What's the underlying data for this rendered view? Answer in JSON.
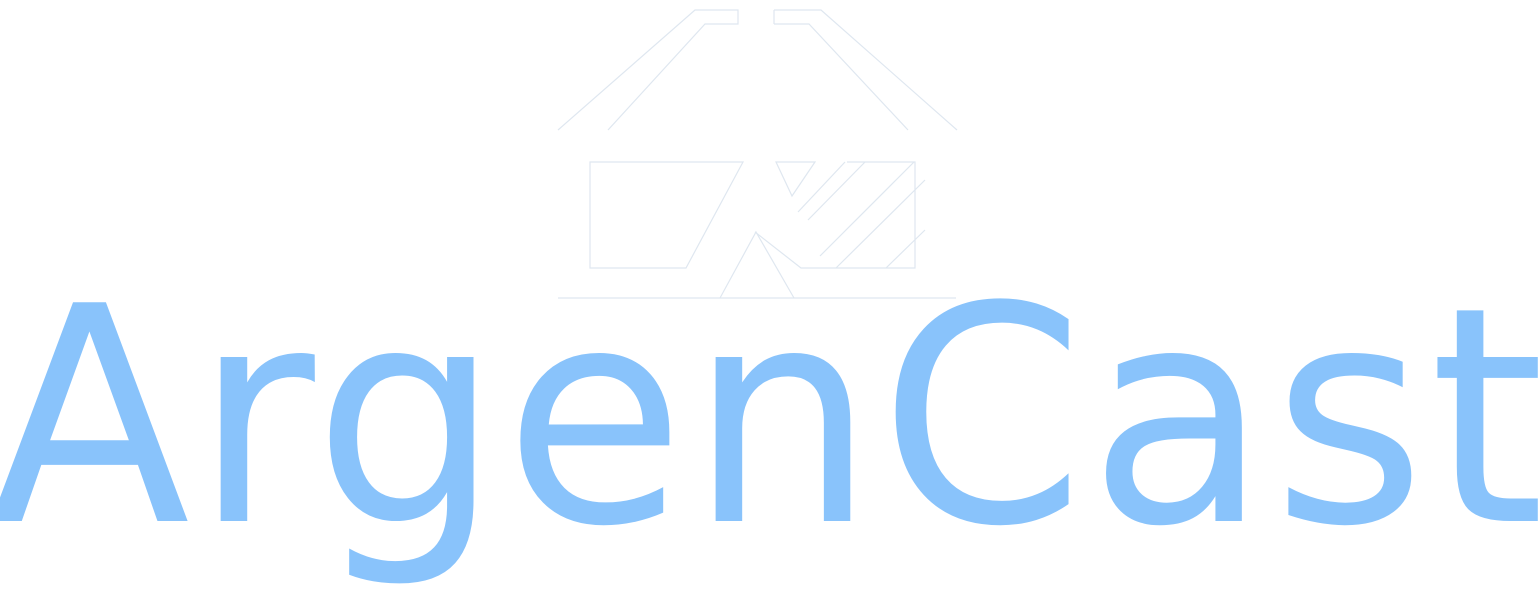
{
  "logo": {
    "wordmark": "ArgenCast",
    "emblem_icon": "house-with-shelf-icon",
    "colors": {
      "wordmark": "#89c3fb",
      "emblem_stroke": "#dfe7f0",
      "background": "#ffffff"
    }
  }
}
